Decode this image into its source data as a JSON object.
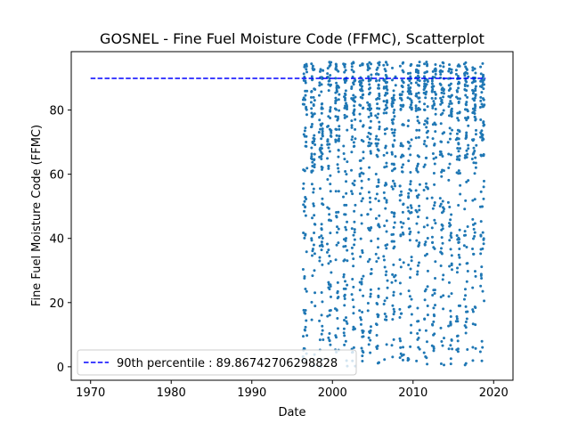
{
  "chart_data": {
    "type": "scatter",
    "title": "GOSNEL - Fine Fuel Moisture Code (FFMC), Scatterplot",
    "xlabel": "Date",
    "ylabel": "Fine Fuel Moisture Code (FFMC)",
    "xlim": [
      1967.6,
      2022.4
    ],
    "ylim": [
      -4.2,
      98.2
    ],
    "xticks": [
      1970,
      1980,
      1990,
      2000,
      2010,
      2020
    ],
    "yticks": [
      0,
      20,
      40,
      60,
      80
    ],
    "grid": false,
    "legend_position": "lower-left",
    "reference_line": {
      "label": "90th percentile : 89.86742706298828",
      "y": 89.86742706298828,
      "x_range": [
        1970,
        2019
      ],
      "style": "dashed",
      "color": "#0000ff"
    },
    "series": [
      {
        "color": "#1f77b4",
        "fire_seasons": [
          {
            "start": 1996.35,
            "end": 1996.85
          },
          {
            "start": 1997.35,
            "end": 1997.85
          },
          {
            "start": 1998.35,
            "end": 1998.85
          },
          {
            "start": 1999.35,
            "end": 1999.85
          },
          {
            "start": 2000.35,
            "end": 2000.85
          },
          {
            "start": 2001.35,
            "end": 2001.85
          },
          {
            "start": 2002.35,
            "end": 2002.85
          },
          {
            "start": 2003.35,
            "end": 2003.85
          },
          {
            "start": 2004.35,
            "end": 2004.85
          },
          {
            "start": 2005.35,
            "end": 2005.85
          },
          {
            "start": 2006.35,
            "end": 2006.85
          },
          {
            "start": 2007.35,
            "end": 2007.85
          },
          {
            "start": 2008.35,
            "end": 2008.85
          },
          {
            "start": 2009.35,
            "end": 2009.85
          },
          {
            "start": 2010.35,
            "end": 2010.85
          },
          {
            "start": 2011.35,
            "end": 2011.85
          },
          {
            "start": 2012.35,
            "end": 2012.85
          },
          {
            "start": 2013.35,
            "end": 2013.85
          },
          {
            "start": 2014.35,
            "end": 2014.85
          },
          {
            "start": 2015.35,
            "end": 2015.85
          },
          {
            "start": 2016.35,
            "end": 2016.85
          },
          {
            "start": 2017.35,
            "end": 2017.85
          },
          {
            "start": 2018.35,
            "end": 2018.85
          }
        ],
        "y_range": [
          0,
          95
        ],
        "points_per_season": 75
      }
    ]
  }
}
